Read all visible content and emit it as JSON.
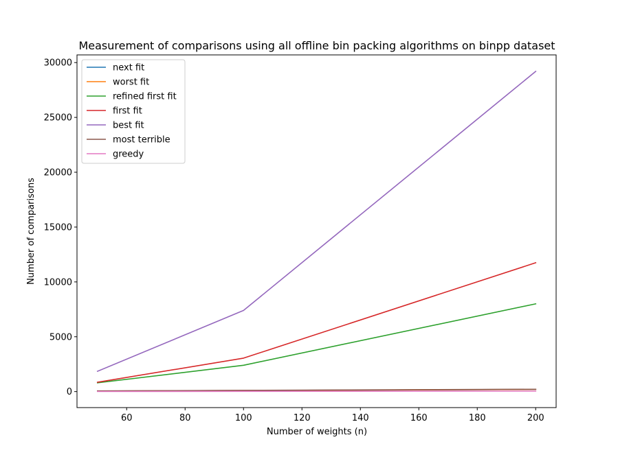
{
  "chart_data": {
    "type": "line",
    "title": "Measurement of comparisons using all offline bin packing algorithms on binpp dataset",
    "xlabel": "Number of weights (n)",
    "ylabel": "Number of comparisons",
    "xlim": [
      43,
      207
    ],
    "ylim": [
      -1460,
      30700
    ],
    "xticks": [
      60,
      80,
      100,
      120,
      140,
      160,
      180,
      200
    ],
    "yticks": [
      0,
      5000,
      10000,
      15000,
      20000,
      25000,
      30000
    ],
    "grid": false,
    "legend": "top-left",
    "x": [
      50,
      100,
      200
    ],
    "series": [
      {
        "name": "next fit",
        "color": "#1f77b4",
        "values": [
          49,
          99,
          199
        ]
      },
      {
        "name": "worst fit",
        "color": "#ff7f0e",
        "values": [
          49,
          99,
          199
        ]
      },
      {
        "name": "refined first fit",
        "color": "#2ca02c",
        "values": [
          800,
          2400,
          8000
        ]
      },
      {
        "name": "first fit",
        "color": "#d62728",
        "values": [
          850,
          3050,
          11750
        ]
      },
      {
        "name": "best fit",
        "color": "#9467bd",
        "values": [
          1850,
          7400,
          29200
        ]
      },
      {
        "name": "most terrible",
        "color": "#8c564b",
        "values": [
          60,
          110,
          210
        ]
      },
      {
        "name": "greedy",
        "color": "#e377c2",
        "values": [
          10,
          20,
          40
        ]
      }
    ]
  }
}
